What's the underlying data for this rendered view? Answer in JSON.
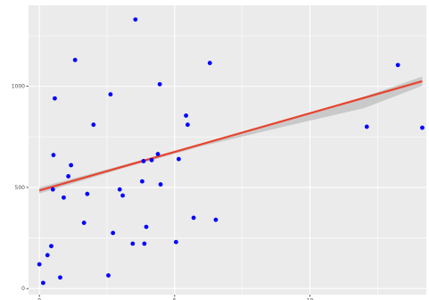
{
  "chart_data": {
    "type": "scatter",
    "title": "",
    "xlabel": "",
    "ylabel": "",
    "xlim": [
      -0.4,
      14.3
    ],
    "ylim": [
      -30,
      1400
    ],
    "x_ticks": [
      0,
      5,
      10
    ],
    "x_tick_labels": [
      "0",
      "5",
      "10"
    ],
    "y_ticks": [
      0,
      500,
      1000
    ],
    "y_tick_labels": [
      "0",
      "500",
      "1000"
    ],
    "grid": true,
    "panel_background": "#ebebeb",
    "grid_color": "#ffffff",
    "point_color": "#0000ff",
    "trend_color": "#e8432e",
    "band_color": "#bdbdbd",
    "points": [
      {
        "x": 0.0,
        "y": 120
      },
      {
        "x": 0.14,
        "y": 28
      },
      {
        "x": 0.3,
        "y": 165
      },
      {
        "x": 0.44,
        "y": 210
      },
      {
        "x": 0.5,
        "y": 490
      },
      {
        "x": 0.52,
        "y": 660
      },
      {
        "x": 0.57,
        "y": 940
      },
      {
        "x": 0.77,
        "y": 55
      },
      {
        "x": 0.9,
        "y": 450
      },
      {
        "x": 1.07,
        "y": 555
      },
      {
        "x": 1.17,
        "y": 610
      },
      {
        "x": 1.32,
        "y": 1130
      },
      {
        "x": 1.65,
        "y": 325
      },
      {
        "x": 1.77,
        "y": 468
      },
      {
        "x": 2.0,
        "y": 810
      },
      {
        "x": 2.55,
        "y": 65
      },
      {
        "x": 2.63,
        "y": 960
      },
      {
        "x": 2.72,
        "y": 275
      },
      {
        "x": 2.97,
        "y": 490
      },
      {
        "x": 3.08,
        "y": 460
      },
      {
        "x": 3.45,
        "y": 222
      },
      {
        "x": 3.55,
        "y": 1330
      },
      {
        "x": 3.8,
        "y": 530
      },
      {
        "x": 3.85,
        "y": 630
      },
      {
        "x": 3.88,
        "y": 222
      },
      {
        "x": 3.95,
        "y": 305
      },
      {
        "x": 4.15,
        "y": 635
      },
      {
        "x": 4.38,
        "y": 665
      },
      {
        "x": 4.45,
        "y": 1010
      },
      {
        "x": 4.48,
        "y": 515
      },
      {
        "x": 5.05,
        "y": 230
      },
      {
        "x": 5.15,
        "y": 640
      },
      {
        "x": 5.42,
        "y": 855
      },
      {
        "x": 5.48,
        "y": 810
      },
      {
        "x": 5.7,
        "y": 350
      },
      {
        "x": 6.3,
        "y": 1115
      },
      {
        "x": 6.52,
        "y": 340
      },
      {
        "x": 12.1,
        "y": 800
      },
      {
        "x": 13.25,
        "y": 1105
      },
      {
        "x": 14.15,
        "y": 795
      }
    ],
    "trend_line": {
      "x": [
        0.0,
        14.15
      ],
      "y": [
        485,
        1025
      ]
    },
    "confidence_band": {
      "x": [
        0.0,
        3.0,
        6.0,
        9.0,
        12.0,
        14.15
      ],
      "upper": [
        500,
        607,
        716,
        831,
        948,
        1048
      ],
      "lower": [
        470,
        591,
        704,
        799,
        892,
        1002
      ]
    }
  }
}
